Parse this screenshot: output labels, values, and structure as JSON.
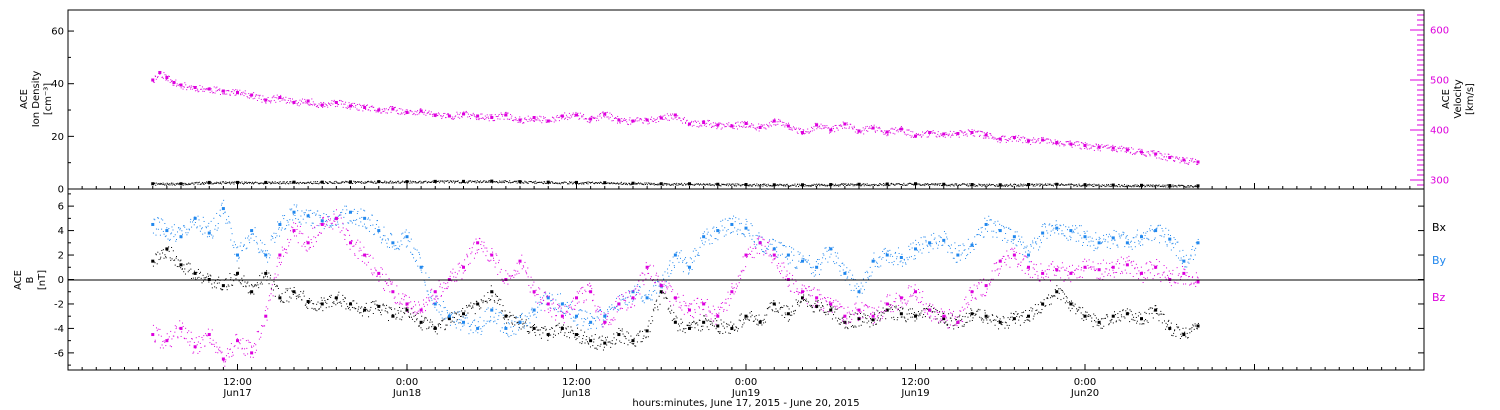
{
  "chart_data": [
    {
      "type": "scatter",
      "panel": "top",
      "ylabel_left": [
        "ACE",
        "Ion Density",
        "[cm⁻³]"
      ],
      "ylabel_right": [
        "ACE",
        "Velocity",
        "[km/s]"
      ],
      "ylim_left": [
        0,
        68
      ],
      "yticks_left": [
        "0",
        "20",
        "40",
        "60"
      ],
      "ylim_right": [
        282,
        640
      ],
      "yticks_right": [
        "300",
        "400",
        "500",
        "600"
      ],
      "series": [
        {
          "axis": "left",
          "color": "#000000",
          "x": [
            6,
            8,
            10,
            12,
            14,
            16,
            18,
            20,
            22,
            24,
            26,
            28,
            30,
            32,
            34,
            36,
            38,
            40,
            42,
            44,
            46,
            48,
            50,
            52,
            54,
            56,
            58,
            60,
            62,
            64,
            66,
            68,
            70,
            72,
            74,
            76,
            78,
            80
          ],
          "y": [
            2,
            2,
            2.5,
            2.5,
            2.5,
            2.6,
            2.6,
            2.7,
            2.8,
            2.8,
            2.9,
            2.9,
            3,
            2.8,
            2.6,
            2.5,
            2.4,
            2.2,
            2,
            2,
            1.8,
            1.7,
            1.6,
            1.6,
            1.7,
            1.8,
            1.9,
            2,
            1.8,
            1.7,
            1.6,
            1.7,
            1.8,
            1.6,
            1.5,
            1.4,
            1.3,
            1.2
          ]
        },
        {
          "axis": "right",
          "color": "#dd00dd",
          "x": [
            6,
            6.5,
            7,
            7.5,
            8,
            9,
            10,
            11,
            12,
            13,
            14,
            15,
            16,
            17,
            18,
            19,
            20,
            21,
            22,
            23,
            24,
            25,
            26,
            27,
            28,
            29,
            30,
            31,
            32,
            33,
            34,
            35,
            36,
            37,
            38,
            39,
            40,
            41,
            42,
            43,
            44,
            45,
            46,
            47,
            48,
            49,
            50,
            51,
            52,
            53,
            54,
            55,
            56,
            57,
            58,
            59,
            60,
            61,
            62,
            63,
            64,
            65,
            66,
            67,
            68,
            69,
            70,
            71,
            72,
            73,
            74,
            75,
            76,
            77,
            78,
            79,
            80
          ],
          "y": [
            500,
            515,
            505,
            495,
            490,
            485,
            482,
            478,
            475,
            470,
            460,
            465,
            455,
            458,
            450,
            455,
            448,
            445,
            440,
            442,
            435,
            438,
            430,
            428,
            432,
            428,
            425,
            430,
            420,
            425,
            418,
            428,
            430,
            422,
            432,
            420,
            418,
            420,
            424,
            430,
            412,
            415,
            410,
            408,
            413,
            405,
            418,
            408,
            395,
            410,
            400,
            412,
            398,
            404,
            396,
            402,
            388,
            395,
            392,
            393,
            395,
            390,
            382,
            385,
            378,
            380,
            375,
            372,
            369,
            366,
            364,
            360,
            356,
            352,
            345,
            340,
            336
          ]
        }
      ]
    },
    {
      "type": "scatter",
      "panel": "bottom",
      "ylabel_left": [
        "ACE",
        "B",
        "[nT]"
      ],
      "ylim": [
        -7.4,
        7.4
      ],
      "yticks": [
        "-6",
        "-4",
        "-2",
        "0",
        "2",
        "4",
        "6"
      ],
      "legend": [
        "Bx",
        "By",
        "Bz"
      ],
      "series": [
        {
          "name": "Bx",
          "color": "#000000",
          "x": [
            6,
            7,
            8,
            9,
            10,
            11,
            12,
            13,
            14,
            15,
            16,
            17,
            18,
            19,
            20,
            21,
            22,
            23,
            24,
            25,
            26,
            27,
            28,
            29,
            30,
            31,
            32,
            33,
            34,
            35,
            36,
            37,
            38,
            39,
            40,
            41,
            42,
            43,
            44,
            45,
            46,
            47,
            48,
            49,
            50,
            51,
            52,
            53,
            54,
            55,
            56,
            57,
            58,
            59,
            60,
            61,
            62,
            63,
            64,
            65,
            66,
            67,
            68,
            69,
            70,
            71,
            72,
            73,
            74,
            75,
            76,
            77,
            78,
            79,
            80
          ],
          "y": [
            1.5,
            2.5,
            1.2,
            0.5,
            0,
            -0.5,
            0.5,
            -1,
            0.5,
            -1.5,
            -1,
            -1.8,
            -2,
            -1.5,
            -2,
            -2.5,
            -2.2,
            -3,
            -2.5,
            -3.5,
            -4,
            -3.2,
            -2.8,
            -2,
            -1,
            -3,
            -3.5,
            -4,
            -4.5,
            -4,
            -4.5,
            -5,
            -5.2,
            -4.5,
            -5,
            -4.2,
            -1,
            -3.5,
            -4,
            -3.5,
            -3.8,
            -4,
            -3,
            -3.5,
            -2,
            -2.8,
            -1.5,
            -2.2,
            -2.5,
            -3.5,
            -3.2,
            -3.3,
            -2.5,
            -2.8,
            -3,
            -2.5,
            -3.2,
            -3.5,
            -2.8,
            -3,
            -3.5,
            -3.2,
            -3,
            -2,
            -1,
            -2,
            -3,
            -3.5,
            -3,
            -2.8,
            -3.2,
            -2.5,
            -4,
            -4.5,
            -3.8
          ]
        },
        {
          "name": "By",
          "color": "#2288ee",
          "x": [
            6,
            7,
            8,
            9,
            10,
            11,
            12,
            13,
            14,
            15,
            16,
            17,
            18,
            19,
            20,
            21,
            22,
            23,
            24,
            25,
            26,
            27,
            28,
            29,
            30,
            31,
            32,
            33,
            34,
            35,
            36,
            37,
            38,
            39,
            40,
            41,
            42,
            43,
            44,
            45,
            46,
            47,
            48,
            49,
            50,
            51,
            52,
            53,
            54,
            55,
            56,
            57,
            58,
            59,
            60,
            61,
            62,
            63,
            64,
            65,
            66,
            67,
            68,
            69,
            70,
            71,
            72,
            73,
            74,
            75,
            76,
            77,
            78,
            79,
            80
          ],
          "y": [
            4.5,
            4,
            3.5,
            5,
            3.8,
            5.8,
            2,
            4,
            2,
            4.5,
            5.5,
            5.2,
            4.8,
            5,
            5.5,
            5,
            4,
            3,
            3.5,
            1,
            -2,
            -3,
            -3.5,
            -4,
            -2.5,
            -4,
            -3.5,
            -2.5,
            -1.5,
            -2,
            -3,
            -3.5,
            -3,
            -2,
            -1,
            -1.5,
            -0.5,
            2,
            1,
            3.5,
            4,
            4.5,
            4.2,
            3,
            2.5,
            2,
            1.5,
            1,
            2.5,
            0.5,
            -1,
            1.5,
            2,
            1.8,
            2.5,
            3,
            3.2,
            2,
            2.8,
            4.5,
            4,
            3.5,
            2,
            3.8,
            4.2,
            4,
            3.5,
            3,
            3.4,
            3,
            3.5,
            4,
            3.3,
            1.5,
            3
          ]
        },
        {
          "name": "Bz",
          "color": "#dd00dd",
          "x": [
            6,
            7,
            8,
            9,
            10,
            11,
            12,
            13,
            14,
            15,
            16,
            17,
            18,
            19,
            20,
            21,
            22,
            23,
            24,
            25,
            26,
            27,
            28,
            29,
            30,
            31,
            32,
            33,
            34,
            35,
            36,
            37,
            38,
            39,
            40,
            41,
            42,
            43,
            44,
            45,
            46,
            47,
            48,
            49,
            50,
            51,
            52,
            53,
            54,
            55,
            56,
            57,
            58,
            59,
            60,
            61,
            62,
            63,
            64,
            65,
            66,
            67,
            68,
            69,
            70,
            71,
            72,
            73,
            74,
            75,
            76,
            77,
            78,
            79,
            80
          ],
          "y": [
            -4.5,
            -5,
            -4,
            -5.5,
            -4.5,
            -6.5,
            -5,
            -6,
            -3,
            2,
            4,
            3,
            4.5,
            5,
            3,
            2,
            0.5,
            -1,
            -2,
            -2.5,
            -1,
            0,
            1,
            3,
            2,
            0,
            1.5,
            -1,
            -2,
            -3,
            -1.5,
            -1,
            -3.5,
            -2,
            -1.5,
            1,
            -0.5,
            -1.5,
            -2.5,
            -2,
            -3,
            -1,
            2,
            3,
            2,
            0,
            -1,
            -1.5,
            -2,
            -3,
            -2.5,
            -3,
            -2,
            -1.5,
            -1,
            -2.5,
            -3,
            -3.5,
            -1,
            -0.5,
            1.5,
            2,
            1,
            0.5,
            0.8,
            0.5,
            1,
            0.8,
            1,
            1.2,
            0.5,
            1,
            0,
            0.5,
            -0.2
          ]
        }
      ]
    }
  ],
  "x_axis": {
    "xlim": [
      0,
      96
    ],
    "major_ticks": [
      {
        "x": 12,
        "time": "12:00",
        "date": "Jun17"
      },
      {
        "x": 24,
        "time": "0:00",
        "date": "Jun18"
      },
      {
        "x": 36,
        "time": "12:00",
        "date": "Jun18"
      },
      {
        "x": 48,
        "time": "0:00",
        "date": "Jun19"
      },
      {
        "x": 60,
        "time": "12:00",
        "date": "Jun19"
      },
      {
        "x": 72,
        "time": "0:00",
        "date": "Jun20"
      }
    ],
    "xlabel": "hours:minutes, June 17, 2015 - June 20, 2015"
  }
}
